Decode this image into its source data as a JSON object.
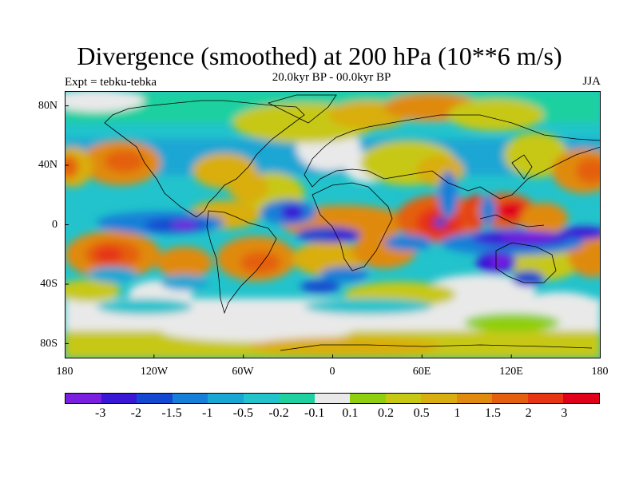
{
  "title": "Divergence (smoothed) at 200 hPa (10**6 m/s)",
  "experiment": "Expt = tebku-tebka",
  "period": "20.0kyr BP - 00.0kyr BP",
  "season": "JJA",
  "lat_labels": [
    "80N",
    "40N",
    "0",
    "40S",
    "80S"
  ],
  "lon_labels": [
    "180",
    "120W",
    "60W",
    "0",
    "60E",
    "120E",
    "180"
  ],
  "colorbar": {
    "colors": [
      "#7a1ee0",
      "#3a17d6",
      "#1448d0",
      "#1680d8",
      "#1aa6d4",
      "#22c3cc",
      "#1fd0a0",
      "#e9e9e9",
      "#8fcf10",
      "#c7c814",
      "#d9ae10",
      "#e08a10",
      "#e46010",
      "#e63414",
      "#e0001a"
    ],
    "labels": [
      "-3",
      "-2",
      "-1.5",
      "-1",
      "-0.5",
      "-0.2",
      "-0.1",
      "0.1",
      "0.2",
      "0.5",
      "1",
      "1.5",
      "2",
      "3"
    ]
  }
}
